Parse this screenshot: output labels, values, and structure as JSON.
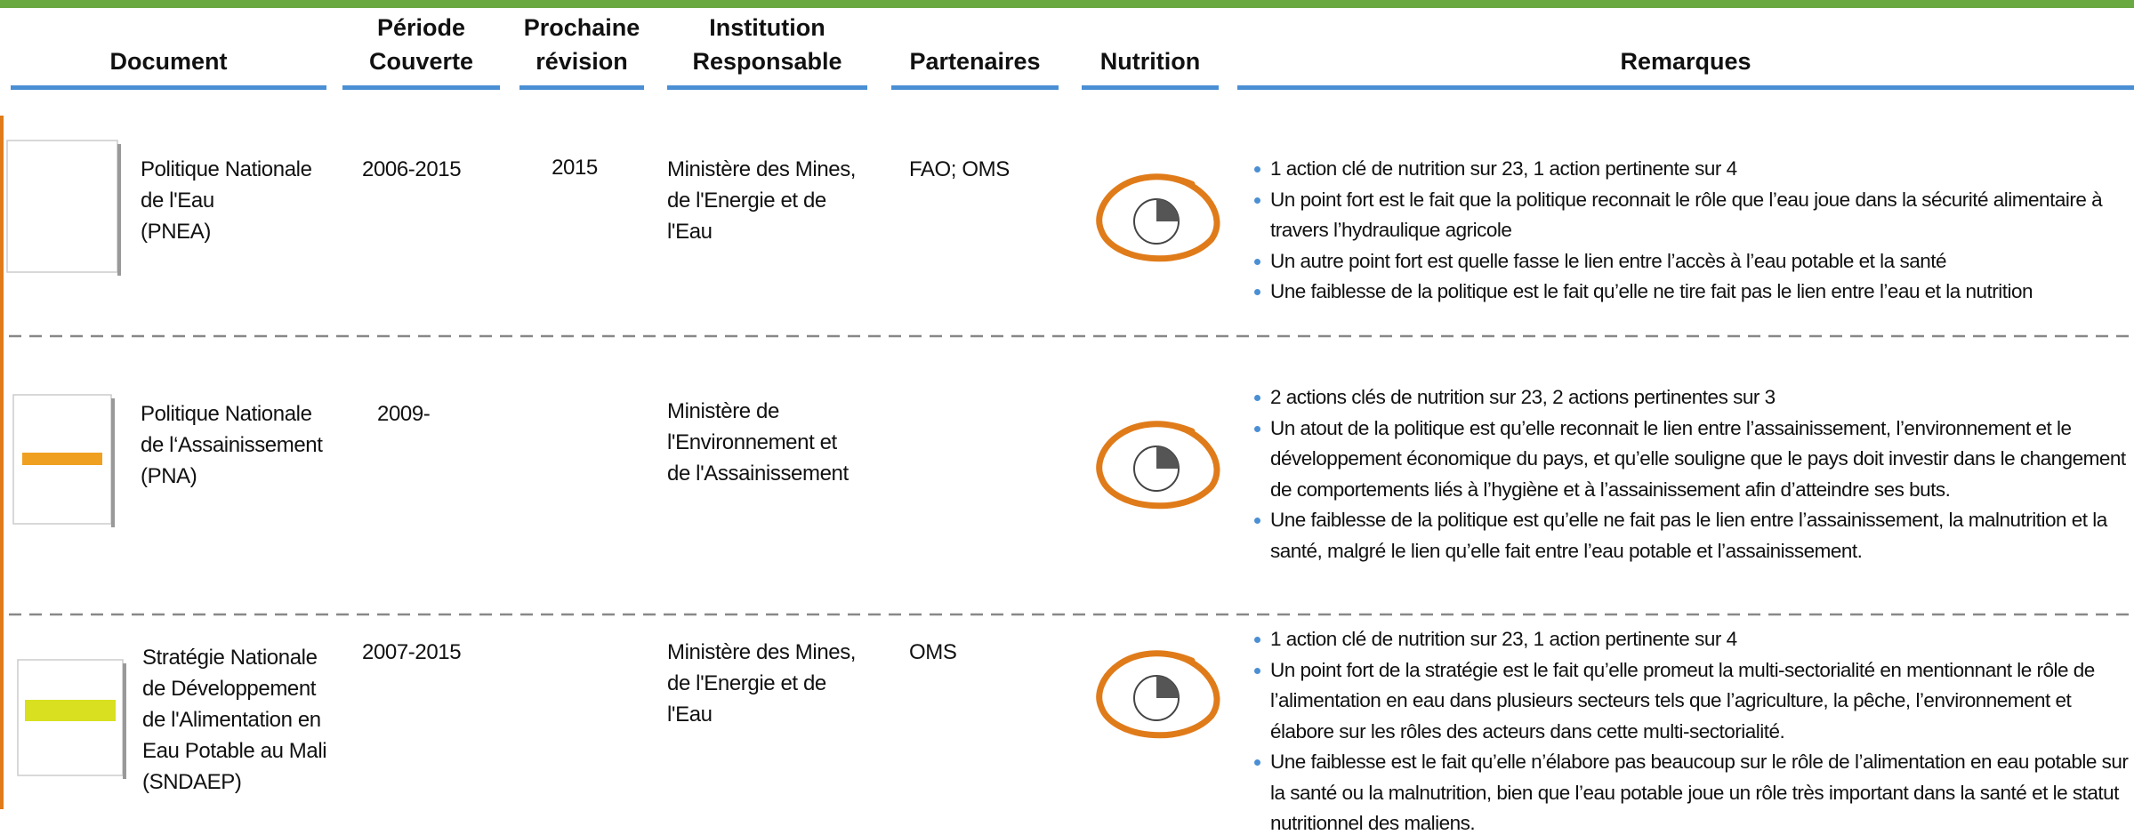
{
  "header": {
    "columns": [
      "Document",
      "Période\nCouverte",
      "Prochaine\nrévision",
      "Institution\nResponsable",
      "Partenaires",
      "Nutrition",
      "Remarques"
    ]
  },
  "table": {
    "rows": [
      {
        "document": "Politique Nationale\nde l'Eau\n(PNEA)",
        "period": "2006-2015",
        "revision": "2015",
        "institution": "Ministère des Mines,\nde l'Energie et de\nl'Eau",
        "partners": "FAO; OMS",
        "remarks": [
          "1 action clé de nutrition sur 23, 1 action pertinente sur 4",
          "Un point fort est le fait que la politique reconnait le rôle que l’eau joue dans la sécurité alimentaire à travers l’hydraulique agricole",
          "Un autre point fort est quelle fasse le lien entre l’accès à l’eau potable et la santé",
          "Une faiblesse de la politique est le fait qu’elle ne tire fait pas le lien entre l’eau et la nutrition"
        ]
      },
      {
        "document": "Politique Nationale\nde l‘Assainissement\n(PNA)",
        "period": "2009-",
        "institution": "Ministère de\nl'Environnement et\nde l'Assainissement",
        "remarks": [
          "2 actions clés de nutrition sur 23, 2 actions pertinentes sur 3",
          "Un atout de la politique est qu’elle reconnait le lien entre l’assainissement, l’environnement et le développement économique du pays, et qu’elle souligne que le pays doit investir dans le changement de comportements liés à l’hygiène et à l’assainissement afin d’atteindre ses buts.",
          "Une faiblesse de la politique est qu’elle ne fait pas le lien entre l’assainissement, la malnutrition et la santé, malgré le lien qu’elle fait entre l’eau potable et l’assainissement."
        ]
      },
      {
        "document": "Stratégie Nationale\nde Développement\nde l'Alimentation en\nEau Potable au Mali\n(SNDAEP)",
        "period": "2007-2015",
        "institution": "Ministère des Mines,\nde l'Energie et de\nl'Eau",
        "partners": "OMS",
        "remarks": [
          "1 action clé de nutrition sur 23, 1 action pertinente sur 4",
          "Un point fort de la stratégie est le fait qu’elle promeut la multi-sectorialité en mentionnant le rôle de l’alimentation en eau dans plusieurs secteurs tels que l’agriculture, la pêche, l’environnement et élabore sur les rôles des acteurs dans cette multi-sectorialité.",
          "Une faiblesse est le fait qu’elle n’élabore pas beaucoup sur le rôle de l’alimentation en eau potable sur la santé ou la malnutrition, bien que l’eau potable joue un rôle très important dans la santé et le statut nutritionnel des maliens."
        ]
      }
    ]
  }
}
